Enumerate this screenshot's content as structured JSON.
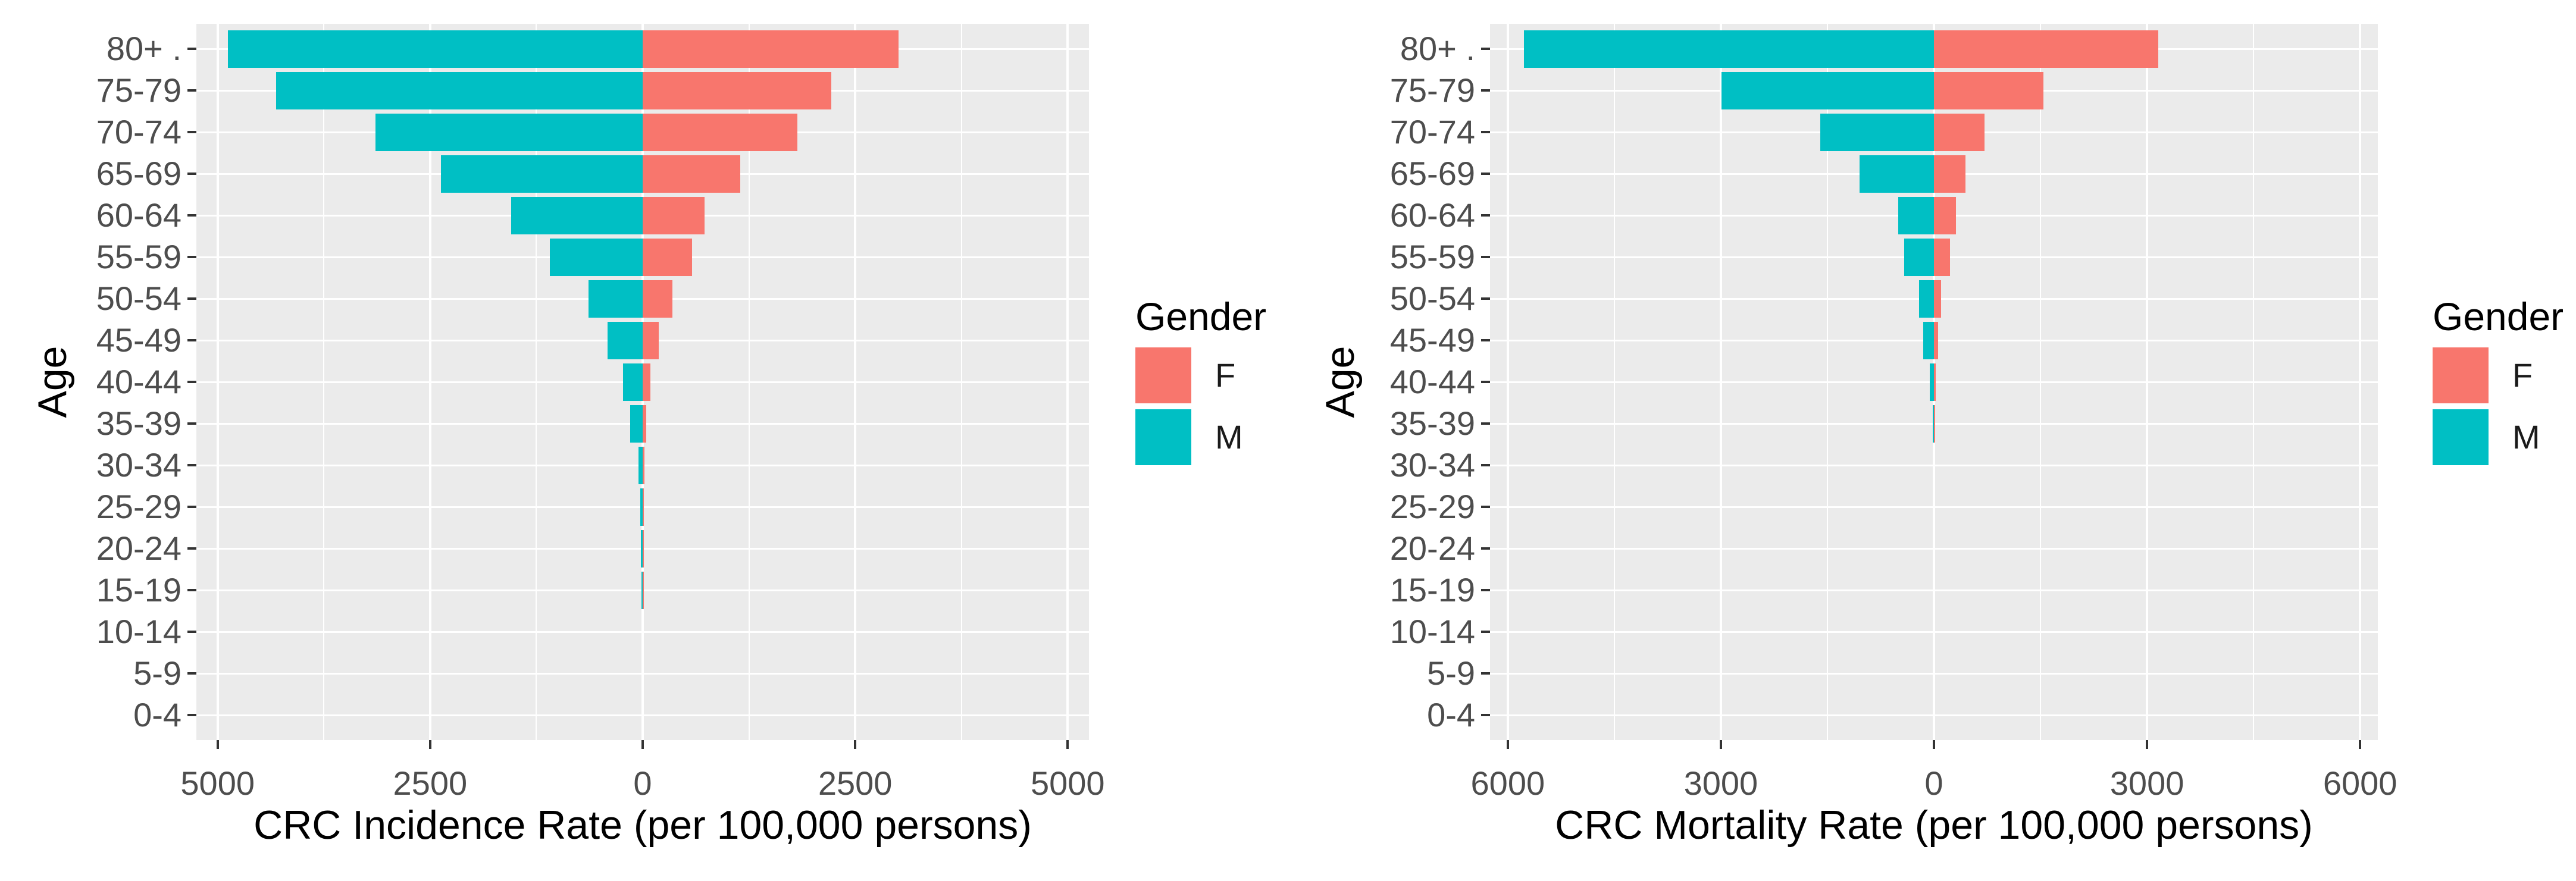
{
  "colors": {
    "background": "#ffffff",
    "panel_bg": "#ebebeb",
    "grid": "#ffffff",
    "tick_mark": "#333333",
    "axis_text": "#4d4d4d",
    "axis_title": "#000000",
    "legend_text": "#1a1a1a",
    "female": "#f8766d",
    "male": "#00bfc4"
  },
  "legend": {
    "title": "Gender",
    "items": [
      {
        "label": "F",
        "color": "#f8766d"
      },
      {
        "label": "M",
        "color": "#00bfc4"
      }
    ]
  },
  "chart_data": [
    {
      "type": "bar",
      "variant": "population-pyramid",
      "title": "",
      "xlabel": "CRC Incidence Rate (per 100,000 persons)",
      "ylabel": "Age",
      "grid": "on",
      "legend_position": "right",
      "categories_top_to_bottom": [
        "80+ .",
        "75-79",
        "70-74",
        "65-69",
        "60-64",
        "55-59",
        "50-54",
        "45-49",
        "40-44",
        "35-39",
        "30-34",
        "25-29",
        "20-24",
        "15-19",
        "10-14",
        "5-9",
        "0-4"
      ],
      "series": [
        {
          "name": "M",
          "side": "left",
          "color": "#00bfc4",
          "values": [
            4880,
            4310,
            3140,
            2370,
            1550,
            1090,
            640,
            410,
            230,
            150,
            50,
            25,
            18,
            15,
            0,
            0,
            0
          ]
        },
        {
          "name": "F",
          "side": "right",
          "color": "#f8766d",
          "values": [
            3010,
            2220,
            1820,
            1150,
            730,
            580,
            350,
            190,
            90,
            45,
            22,
            12,
            8,
            5,
            0,
            0,
            0
          ]
        }
      ],
      "x_ticks": [
        {
          "value": -5000,
          "label": "5000"
        },
        {
          "value": -2500,
          "label": "2500"
        },
        {
          "value": 0,
          "label": "0"
        },
        {
          "value": 2500,
          "label": "2500"
        },
        {
          "value": 5000,
          "label": "5000"
        }
      ],
      "xlim": [
        -5250,
        5250
      ]
    },
    {
      "type": "bar",
      "variant": "population-pyramid",
      "title": "",
      "xlabel": "CRC Mortality Rate (per 100,000 persons)",
      "ylabel": "Age",
      "grid": "on",
      "legend_position": "right",
      "categories_top_to_bottom": [
        "80+ .",
        "75-79",
        "70-74",
        "65-69",
        "60-64",
        "55-59",
        "50-54",
        "45-49",
        "40-44",
        "35-39",
        "30-34",
        "25-29",
        "20-24",
        "15-19",
        "10-14",
        "5-9",
        "0-4"
      ],
      "series": [
        {
          "name": "M",
          "side": "left",
          "color": "#00bfc4",
          "values": [
            5770,
            2990,
            1600,
            1050,
            500,
            420,
            210,
            150,
            60,
            20,
            0,
            0,
            0,
            0,
            0,
            0,
            0
          ]
        },
        {
          "name": "F",
          "side": "right",
          "color": "#f8766d",
          "values": [
            3160,
            1540,
            710,
            440,
            310,
            230,
            100,
            55,
            25,
            15,
            0,
            0,
            0,
            0,
            0,
            0,
            0
          ]
        }
      ],
      "x_ticks": [
        {
          "value": -6000,
          "label": "6000"
        },
        {
          "value": -3000,
          "label": "3000"
        },
        {
          "value": 0,
          "label": "0"
        },
        {
          "value": 3000,
          "label": "3000"
        },
        {
          "value": 6000,
          "label": "6000"
        }
      ],
      "xlim": [
        -6250,
        6250
      ]
    }
  ]
}
